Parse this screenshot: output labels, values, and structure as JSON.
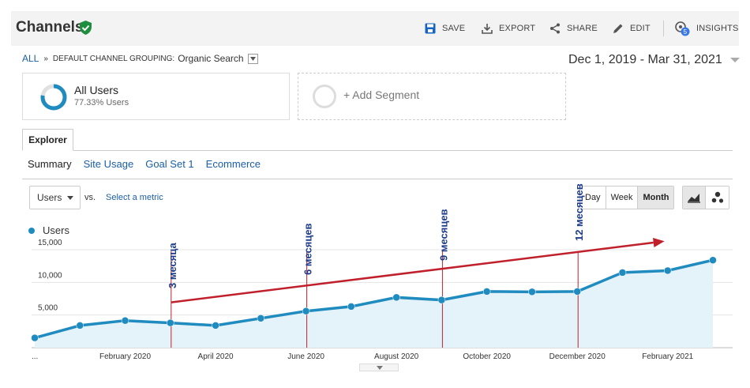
{
  "header": {
    "title": "Channels",
    "save": "SAVE",
    "export": "EXPORT",
    "share": "SHARE",
    "edit": "EDIT",
    "insights": "INSIGHTS",
    "insights_badge": "5"
  },
  "breadcrumb": {
    "all": "ALL",
    "separator": "»",
    "grouping": "DEFAULT CHANNEL GROUPING:",
    "value": "Organic Search"
  },
  "date_range": "Dec 1, 2019 - Mar 31, 2021",
  "segments": [
    {
      "title": "All Users",
      "subtitle": "77.33% Users",
      "share": 0.7733
    },
    {
      "title": "+ Add Segment"
    }
  ],
  "tabs": [
    "Explorer"
  ],
  "subtabs": [
    "Summary",
    "Site Usage",
    "Goal Set 1",
    "Ecommerce"
  ],
  "controls": {
    "metric": "Users",
    "vs": "vs.",
    "select_metric": "Select a metric",
    "periods": [
      "Day",
      "Week",
      "Month"
    ],
    "active_period": "Month"
  },
  "colors": {
    "line": "#1f8bbf",
    "area": "#e4f2f9",
    "annotation": "#c0202b",
    "annotation_text": "#1e3c8c"
  },
  "chart_data": {
    "type": "area",
    "series": [
      {
        "name": "Users",
        "x": [
          "2019-12",
          "2020-01",
          "2020-02",
          "2020-03",
          "2020-04",
          "2020-05",
          "2020-06",
          "2020-07",
          "2020-08",
          "2020-09",
          "2020-10",
          "2020-11",
          "2020-12",
          "2021-01",
          "2021-02",
          "2021-03"
        ],
        "values": [
          1500,
          3400,
          4150,
          3800,
          3400,
          4500,
          5600,
          6300,
          7700,
          7300,
          8600,
          8550,
          8600,
          11500,
          11800,
          13400
        ]
      }
    ],
    "x_tick_labels": [
      "...",
      "February 2020",
      "April 2020",
      "June 2020",
      "August 2020",
      "October 2020",
      "December 2020",
      "February 2021"
    ],
    "y_ticks": [
      "5,000",
      "10,000",
      "15,000"
    ],
    "ylim": [
      0,
      15000
    ],
    "grid": true,
    "annotations": [
      {
        "label": "3 месяца",
        "at": "2020-03"
      },
      {
        "label": "6 месяцев",
        "at": "2020-06"
      },
      {
        "label": "9 месяцев",
        "at": "2020-09"
      },
      {
        "label": "12 месяцев",
        "at": "2020-12"
      }
    ],
    "trend_arrow": {
      "from": "2020-03",
      "to": "2021-02"
    }
  }
}
